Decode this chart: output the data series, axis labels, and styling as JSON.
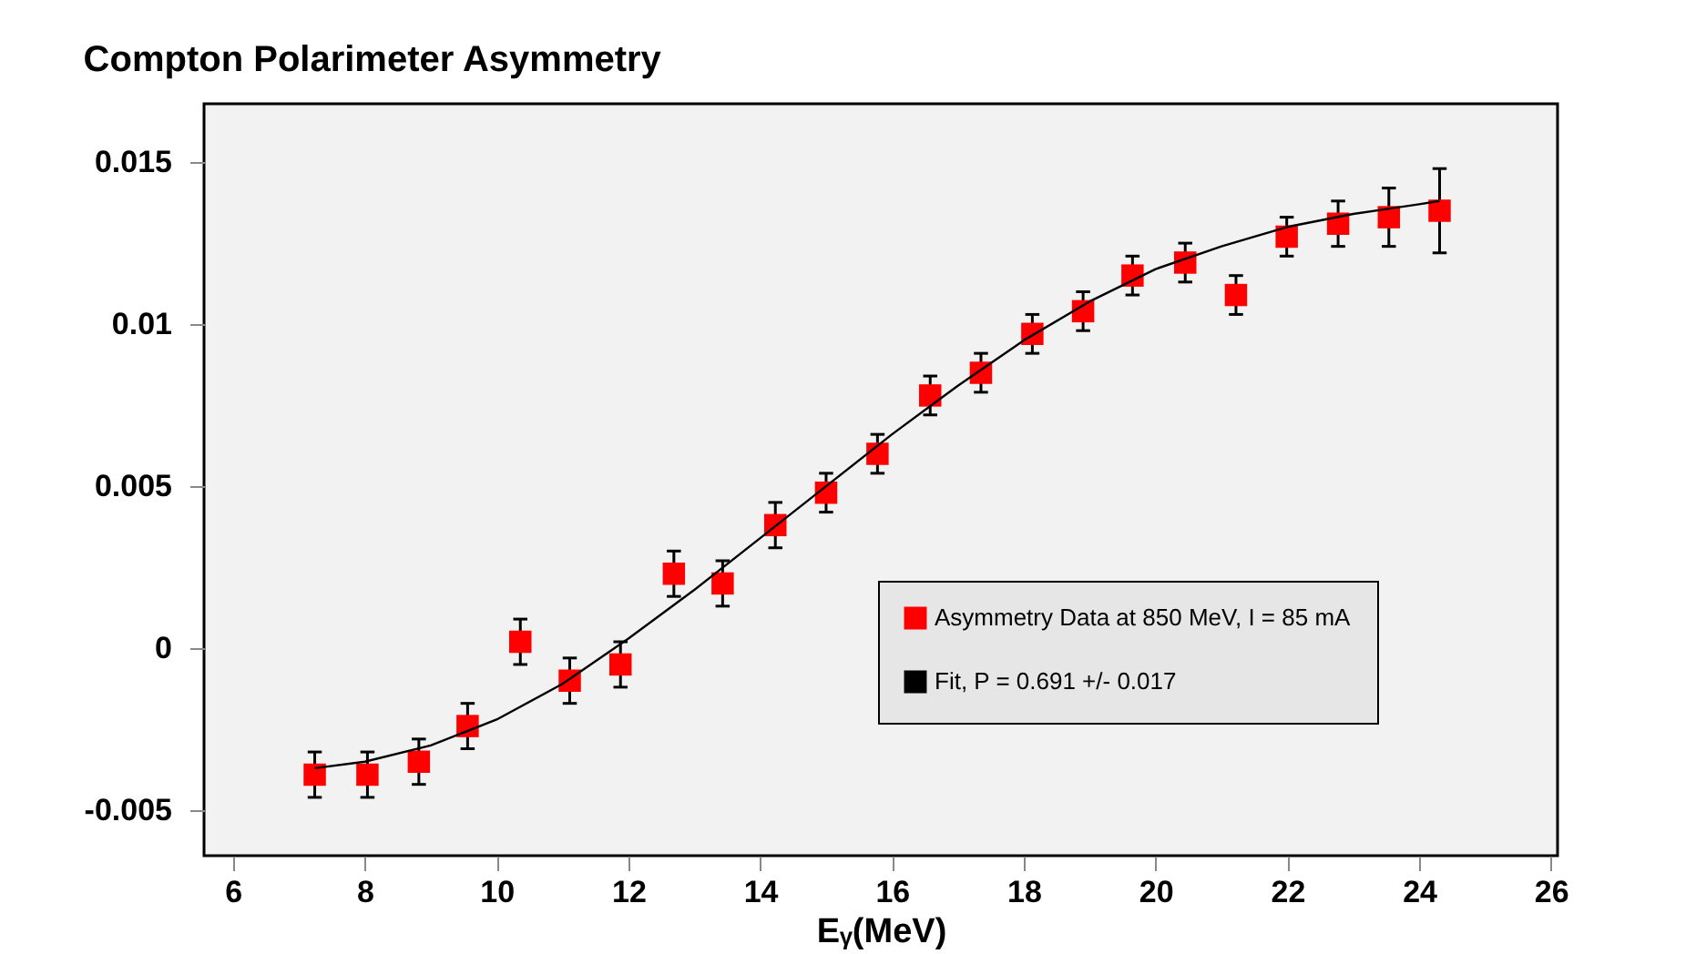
{
  "chart_data": {
    "type": "scatter",
    "title": "Compton Polarimeter Asymmetry",
    "xlabel": "Eᵧ(MeV)",
    "xlim": [
      5.56,
      26.1
    ],
    "xticks": [
      6,
      8,
      10,
      12,
      14,
      16,
      18,
      20,
      22,
      24,
      26
    ],
    "ylim": [
      -0.0064,
      0.0168
    ],
    "yticks": [
      -0.005,
      0,
      0.005,
      0.01,
      0.015
    ],
    "grid": false,
    "legend": "right",
    "marker": "square",
    "series": [
      {
        "name": "Asymmetry Data at 850 MeV, I = 85 mA",
        "color": "#ff0000",
        "x": [
          7.24,
          8.04,
          8.82,
          9.56,
          10.36,
          11.11,
          11.88,
          12.69,
          13.43,
          14.23,
          15.0,
          15.78,
          16.58,
          17.35,
          18.13,
          18.9,
          19.65,
          20.45,
          21.22,
          21.99,
          22.77,
          23.54,
          24.31
        ],
        "values": [
          -0.0039,
          -0.0039,
          -0.0035,
          -0.0024,
          0.0002,
          -0.001,
          -0.0005,
          0.0023,
          0.002,
          0.0038,
          0.0048,
          0.006,
          0.0078,
          0.0085,
          0.0097,
          0.0104,
          0.0115,
          0.0119,
          0.0109,
          0.0127,
          0.0131,
          0.0133,
          0.0135
        ],
        "errors": [
          0.0007,
          0.0007,
          0.0007,
          0.0007,
          0.0007,
          0.0007,
          0.0007,
          0.0007,
          0.0007,
          0.0007,
          0.0006,
          0.0006,
          0.0006,
          0.0006,
          0.0006,
          0.0006,
          0.0006,
          0.0006,
          0.0006,
          0.0006,
          0.0007,
          0.0009,
          0.0013
        ]
      },
      {
        "name": "Fit, P = 0.691 +/- 0.017",
        "type": "line",
        "color": "#000000",
        "line_style": "solid",
        "marker": "none",
        "x": [
          7.24,
          8,
          9,
          10,
          11,
          12,
          13,
          14,
          15,
          16,
          17,
          18,
          19,
          20,
          21,
          22,
          23,
          24,
          24.31
        ],
        "values": [
          -0.0037,
          -0.0035,
          -0.003,
          -0.0022,
          -0.0011,
          0.0003,
          0.0018,
          0.0034,
          0.005,
          0.0066,
          0.0081,
          0.0095,
          0.0107,
          0.0117,
          0.0124,
          0.013,
          0.0134,
          0.0137,
          0.0138
        ]
      }
    ]
  }
}
